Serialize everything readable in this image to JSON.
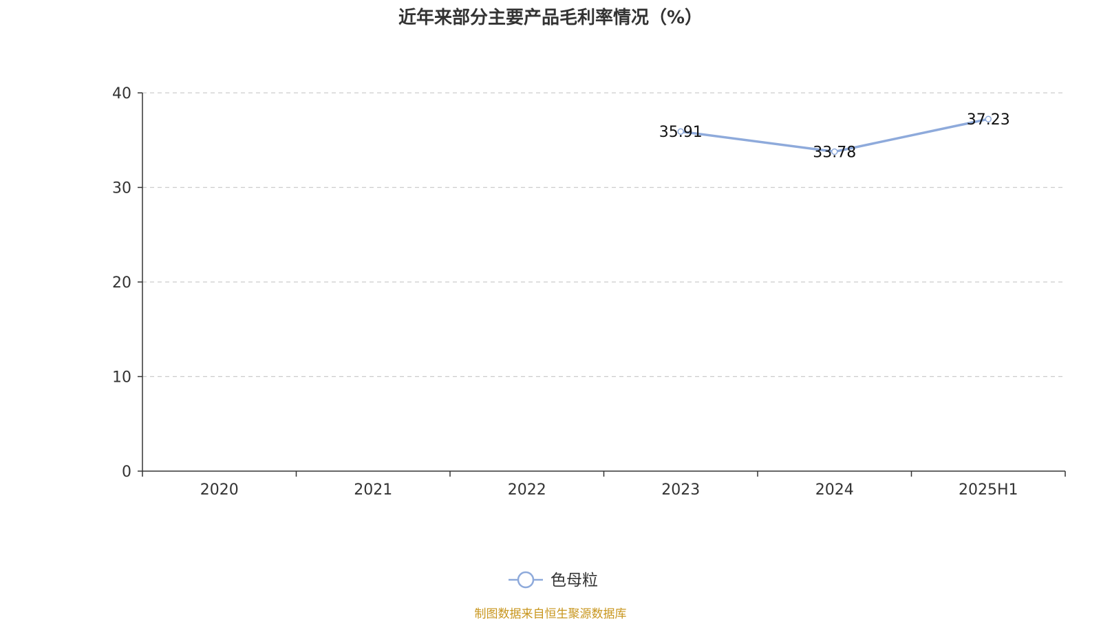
{
  "chart_data": {
    "type": "line",
    "title": "近年来部分主要产品毛利率情况（%）",
    "categories": [
      "2020",
      "2021",
      "2022",
      "2023",
      "2024",
      "2025H1"
    ],
    "series": [
      {
        "name": "色母粒",
        "values": [
          null,
          null,
          null,
          35.91,
          33.78,
          37.23
        ],
        "labels": [
          "",
          "",
          "",
          "35.91",
          "33.78",
          "37.23"
        ],
        "color": "#8eaadb"
      }
    ],
    "yticks": [
      "0",
      "10",
      "20",
      "30",
      "40"
    ],
    "ylim": [
      0,
      40
    ],
    "grid": true,
    "legend_position": "bottom-center",
    "xlabel": "",
    "ylabel": ""
  },
  "source": {
    "text": "制图数据来自恒生聚源数据库",
    "color": "#c8961e"
  }
}
